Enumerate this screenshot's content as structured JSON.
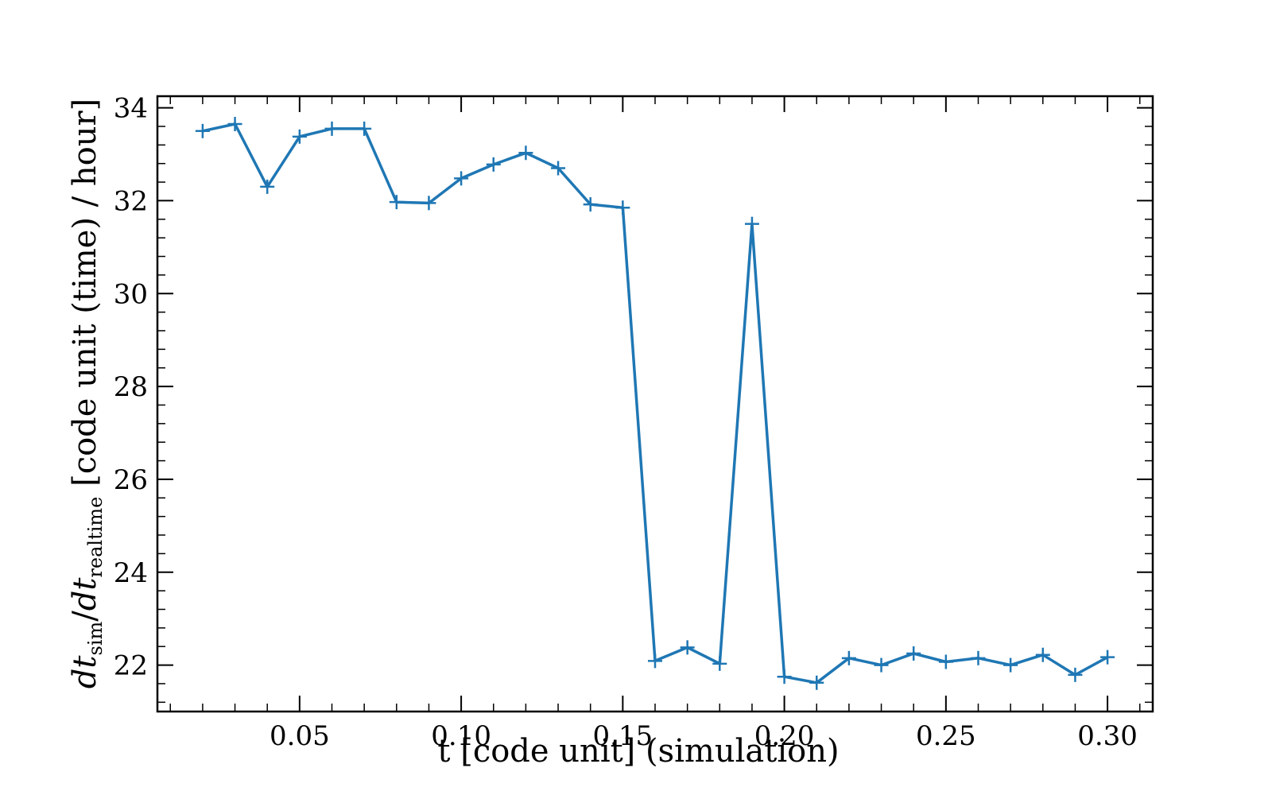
{
  "chart_data": {
    "type": "line",
    "title": "",
    "xlabel": "t [code unit] (simulation)",
    "ylabel": {
      "prefix_italic": "dt",
      "sub1": "sim",
      "slash": "/",
      "sub2": "realtime",
      "suffix": " [code unit (time) / hour]"
    },
    "xlim": [
      0.006,
      0.314
    ],
    "ylim": [
      21.0,
      34.25
    ],
    "xticks": [
      0.05,
      0.1,
      0.15,
      0.2,
      0.25,
      0.3
    ],
    "xtick_labels": [
      "0.05",
      "0.10",
      "0.15",
      "0.20",
      "0.25",
      "0.30"
    ],
    "yticks": [
      22,
      24,
      26,
      28,
      30,
      32,
      34
    ],
    "ytick_labels": [
      "22",
      "24",
      "26",
      "28",
      "30",
      "32",
      "34"
    ],
    "grid": false,
    "marker": "+",
    "color": "#1f77b4",
    "series": [
      {
        "x": [
          0.02,
          0.03,
          0.04,
          0.05,
          0.06,
          0.07,
          0.08,
          0.09,
          0.1,
          0.11,
          0.12,
          0.13,
          0.14,
          0.15,
          0.16,
          0.17,
          0.18,
          0.19,
          0.2,
          0.21,
          0.22,
          0.23,
          0.24,
          0.25,
          0.26,
          0.27,
          0.28,
          0.29,
          0.3
        ],
        "y": [
          33.5,
          33.65,
          32.3,
          33.38,
          33.55,
          33.55,
          31.97,
          31.95,
          32.48,
          32.78,
          33.03,
          32.7,
          31.92,
          31.85,
          22.09,
          22.38,
          22.03,
          31.5,
          21.75,
          21.62,
          22.15,
          22.0,
          22.25,
          22.07,
          22.15,
          22.0,
          22.22,
          21.79,
          22.17
        ]
      }
    ]
  }
}
